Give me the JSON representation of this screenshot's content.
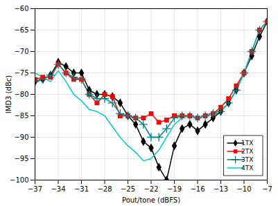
{
  "chart_data": {
    "type": "line",
    "xlabel": "Pout/tone (dBFS)",
    "ylabel": "IMD3 (dBc)",
    "xlim": [
      -37,
      -7
    ],
    "ylim": [
      -100,
      -60
    ],
    "xticks": [
      -37,
      -34,
      -31,
      -28,
      -25,
      -22,
      -19,
      -16,
      -13,
      -10,
      -7
    ],
    "yticks": [
      -100,
      -95,
      -90,
      -85,
      -80,
      -75,
      -70,
      -65,
      -60
    ],
    "x": [
      -37,
      -36,
      -35,
      -34,
      -33,
      -32,
      -31,
      -30,
      -29,
      -28,
      -27,
      -26,
      -25,
      -24,
      -23,
      -22,
      -21,
      -20,
      -19,
      -18,
      -17,
      -16,
      -15,
      -14,
      -13,
      -12,
      -11,
      -10,
      -9,
      -8,
      -7
    ],
    "series": [
      {
        "name": "1TX",
        "color": "#000000",
        "marker": "diamond",
        "values": [
          -77,
          -76.5,
          -75.5,
          -72.5,
          -73.5,
          -75,
          -75,
          -79,
          -80,
          -80,
          -80.5,
          -82,
          -85,
          -87,
          -91,
          -92.5,
          -97,
          -100,
          -92,
          -88,
          -87,
          -88.5,
          -87,
          -85.5,
          -84,
          -82,
          -79,
          -75,
          -71,
          -66.5,
          -63
        ]
      },
      {
        "name": "2TX",
        "color": "#ff0000",
        "marker": "square",
        "values": [
          -76.5,
          -76,
          -76,
          -73,
          -75,
          -76.5,
          -76.5,
          -80,
          -82,
          -80,
          -80.5,
          -85,
          -85,
          -85.5,
          -85.5,
          -84.5,
          -86.5,
          -86,
          -85,
          -85,
          -85,
          -85.5,
          -85,
          -84.5,
          -83,
          -81,
          -78,
          -75,
          -70,
          -65,
          -63
        ]
      },
      {
        "name": "3TX",
        "color": "#008080",
        "marker": "plus",
        "values": [
          -77,
          -76.5,
          -75.5,
          -73,
          -75,
          -76,
          -76.5,
          -80,
          -81,
          -81,
          -82,
          -84.5,
          -85,
          -85.5,
          -87,
          -90,
          -90,
          -88,
          -85.5,
          -85,
          -85,
          -85.5,
          -85,
          -84.5,
          -84,
          -82,
          -79,
          -75,
          -70,
          -65,
          -63
        ]
      },
      {
        "name": "4TX",
        "color": "#00cccc",
        "values": [
          -75,
          -76,
          -77,
          -74.5,
          -77,
          -80,
          -81.5,
          -83.5,
          -84,
          -85,
          -87.5,
          -90,
          -92,
          -93.5,
          -95.5,
          -95,
          -93,
          -90,
          -87,
          -85.5,
          -85,
          -85.5,
          -85,
          -84.5,
          -84,
          -82,
          -79,
          -75,
          -70,
          -65,
          -63
        ]
      }
    ],
    "legend": "lower right",
    "grid": true
  }
}
